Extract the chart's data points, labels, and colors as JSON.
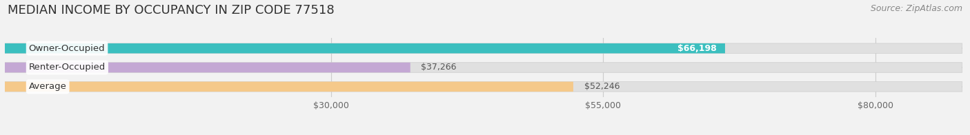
{
  "title": "MEDIAN INCOME BY OCCUPANCY IN ZIP CODE 77518",
  "source": "Source: ZipAtlas.com",
  "categories": [
    "Owner-Occupied",
    "Renter-Occupied",
    "Average"
  ],
  "values": [
    66198,
    37266,
    52246
  ],
  "bar_colors": [
    "#3bbfbf",
    "#c4a8d4",
    "#f5c98a"
  ],
  "label_texts": [
    "$66,198",
    "$37,266",
    "$52,246"
  ],
  "label_inside": [
    true,
    false,
    false
  ],
  "label_colors_inside": [
    "#ffffff",
    "#555555",
    "#555555"
  ],
  "x_ticks": [
    30000,
    55000,
    80000
  ],
  "x_tick_labels": [
    "$30,000",
    "$55,000",
    "$80,000"
  ],
  "xlim_max": 88000,
  "background_color": "#f2f2f2",
  "bar_bg_color": "#e0e0e0",
  "bar_bg_outline": "#d0d0d0",
  "title_fontsize": 13,
  "source_fontsize": 9,
  "label_fontsize": 9,
  "category_fontsize": 9.5,
  "bar_height": 0.52,
  "pill_color": "#ffffff",
  "pill_alpha": 0.92
}
